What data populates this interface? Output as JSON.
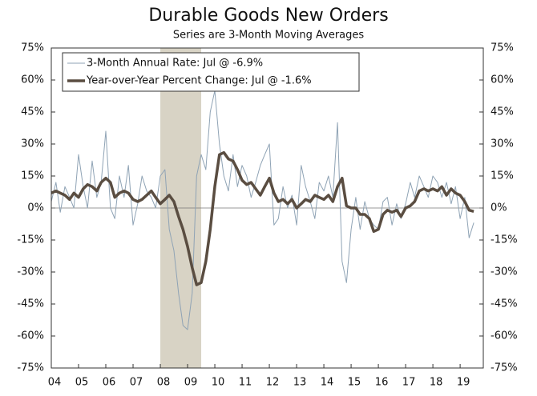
{
  "chart_data": {
    "type": "line",
    "title": "Durable Goods New Orders",
    "subtitle": "Series are 3-Month Moving Averages",
    "x": [
      2004,
      2004.17,
      2004.33,
      2004.5,
      2004.67,
      2004.83,
      2005,
      2005.17,
      2005.33,
      2005.5,
      2005.67,
      2005.83,
      2006,
      2006.17,
      2006.33,
      2006.5,
      2006.67,
      2006.83,
      2007,
      2007.17,
      2007.33,
      2007.5,
      2007.67,
      2007.83,
      2008,
      2008.17,
      2008.33,
      2008.5,
      2008.67,
      2008.83,
      2009,
      2009.17,
      2009.33,
      2009.5,
      2009.67,
      2009.83,
      2010,
      2010.17,
      2010.33,
      2010.5,
      2010.67,
      2010.83,
      2011,
      2011.17,
      2011.33,
      2011.5,
      2011.67,
      2011.83,
      2012,
      2012.17,
      2012.33,
      2012.5,
      2012.67,
      2012.83,
      2013,
      2013.17,
      2013.33,
      2013.5,
      2013.67,
      2013.83,
      2014,
      2014.17,
      2014.33,
      2014.5,
      2014.67,
      2014.83,
      2015,
      2015.17,
      2015.33,
      2015.5,
      2015.67,
      2015.83,
      2016,
      2016.17,
      2016.33,
      2016.5,
      2016.67,
      2016.83,
      2017,
      2017.17,
      2017.33,
      2017.5,
      2017.67,
      2017.83,
      2018,
      2018.17,
      2018.33,
      2018.5,
      2018.67,
      2018.83,
      2019,
      2019.17,
      2019.33,
      2019.5
    ],
    "series": [
      {
        "name": "3-Month Annual Rate: Jul @ -6.9%",
        "color": "#8fa3b5",
        "width": 1,
        "values": [
          3,
          12,
          -2,
          10,
          5,
          0,
          25,
          10,
          0,
          22,
          5,
          12,
          36,
          0,
          -5,
          15,
          5,
          20,
          -8,
          2,
          15,
          8,
          5,
          0,
          15,
          18,
          -10,
          -20,
          -40,
          -55,
          -57,
          -40,
          15,
          25,
          18,
          45,
          55,
          30,
          15,
          8,
          25,
          10,
          20,
          15,
          5,
          12,
          20,
          25,
          30,
          -8,
          -5,
          10,
          0,
          6,
          -8,
          20,
          10,
          3,
          -5,
          12,
          8,
          15,
          5,
          40,
          -25,
          -35,
          -10,
          5,
          -10,
          3,
          -5,
          -8,
          -10,
          3,
          5,
          -8,
          2,
          -5,
          2,
          12,
          5,
          15,
          10,
          5,
          15,
          12,
          5,
          12,
          2,
          10,
          -5,
          5,
          -14,
          -6.9
        ]
      },
      {
        "name": "Year-over-Year Percent Change: Jul @ -1.6%",
        "color": "#5a4d41",
        "width": 3.5,
        "values": [
          7,
          8,
          7,
          6,
          4,
          7,
          5,
          9,
          11,
          10,
          8,
          12,
          14,
          12,
          5,
          7,
          8,
          7,
          4,
          3,
          4,
          6,
          8,
          5,
          2,
          4,
          6,
          3,
          -4,
          -10,
          -18,
          -28,
          -36,
          -35,
          -25,
          -10,
          10,
          25,
          26,
          23,
          22,
          18,
          13,
          11,
          12,
          9,
          6,
          10,
          14,
          7,
          3,
          4,
          2,
          4,
          0,
          2,
          4,
          3,
          6,
          5,
          4,
          6,
          3,
          10,
          14,
          1,
          0,
          0,
          -3,
          -3,
          -5,
          -11,
          -10,
          -3,
          -1,
          -2,
          -1,
          -4,
          0,
          1,
          3,
          8,
          9,
          8,
          9,
          8,
          10,
          6,
          9,
          7,
          6,
          3,
          -1,
          -1.6
        ]
      }
    ],
    "recession": {
      "start": 2008,
      "end": 2009.5,
      "color": "#d8d3c5"
    },
    "xlim": [
      2004,
      2019.85
    ],
    "xticks": [
      {
        "value": 2004,
        "label": "04"
      },
      {
        "value": 2005,
        "label": "05"
      },
      {
        "value": 2006,
        "label": "06"
      },
      {
        "value": 2007,
        "label": "07"
      },
      {
        "value": 2008,
        "label": "08"
      },
      {
        "value": 2009,
        "label": "09"
      },
      {
        "value": 2010,
        "label": "10"
      },
      {
        "value": 2011,
        "label": "11"
      },
      {
        "value": 2012,
        "label": "12"
      },
      {
        "value": 2013,
        "label": "13"
      },
      {
        "value": 2014,
        "label": "14"
      },
      {
        "value": 2015,
        "label": "15"
      },
      {
        "value": 2016,
        "label": "16"
      },
      {
        "value": 2017,
        "label": "17"
      },
      {
        "value": 2018,
        "label": "18"
      },
      {
        "value": 2019,
        "label": "19"
      }
    ],
    "ylim": [
      -75,
      75
    ],
    "yticks": [
      {
        "value": -75,
        "label": "-75%"
      },
      {
        "value": -60,
        "label": "-60%"
      },
      {
        "value": -45,
        "label": "-45%"
      },
      {
        "value": -30,
        "label": "-30%"
      },
      {
        "value": -15,
        "label": "-15%"
      },
      {
        "value": 0,
        "label": "0%"
      },
      {
        "value": 15,
        "label": "15%"
      },
      {
        "value": 30,
        "label": "30%"
      },
      {
        "value": 45,
        "label": "45%"
      },
      {
        "value": 60,
        "label": "60%"
      },
      {
        "value": 75,
        "label": "75%"
      }
    ],
    "legend": "top-left"
  }
}
